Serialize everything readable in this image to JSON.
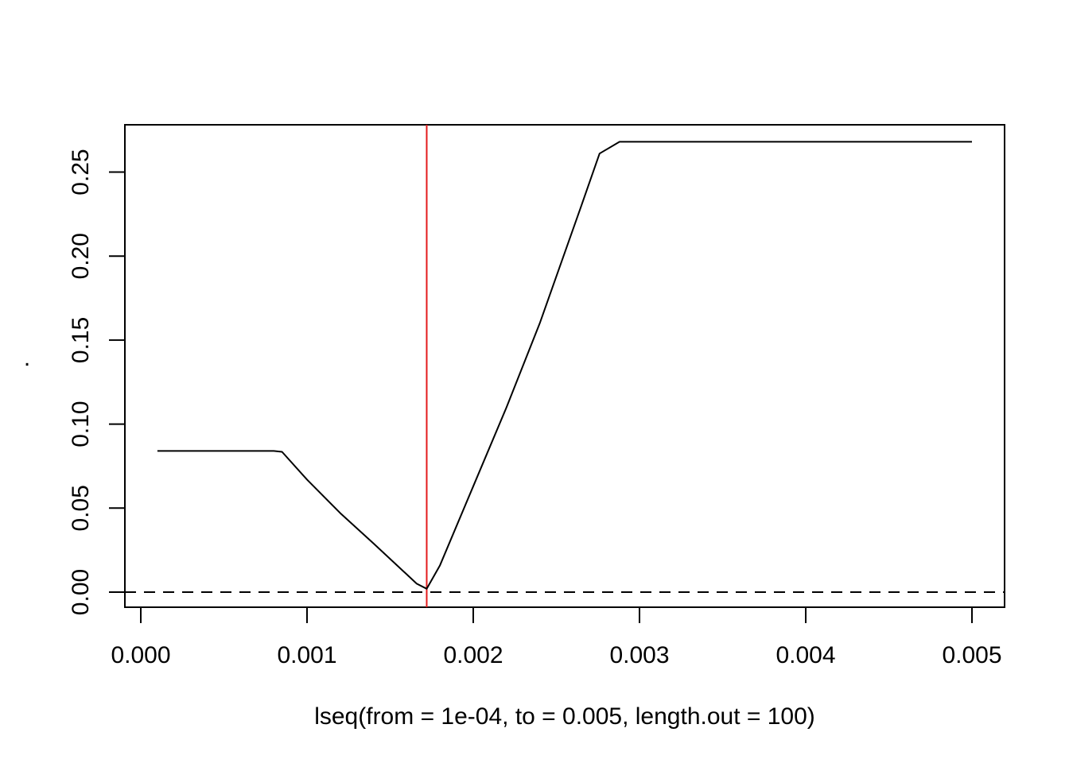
{
  "chart_data": {
    "type": "line",
    "title": "",
    "xlabel": "lseq(from = 1e-04, to = 0.005, length.out = 100)",
    "ylabel": ".",
    "xlim": [
      0.0,
      0.005
    ],
    "ylim": [
      0.0,
      0.27
    ],
    "x_ticks": [
      "0.000",
      "0.001",
      "0.002",
      "0.003",
      "0.004",
      "0.005"
    ],
    "y_ticks": [
      "0.00",
      "0.05",
      "0.10",
      "0.15",
      "0.20",
      "0.25"
    ],
    "grid": false,
    "series": [
      {
        "color": "#000000",
        "x": [
          0.0001,
          0.0008,
          0.00085,
          0.001,
          0.0012,
          0.0014,
          0.00166,
          0.00172,
          0.0018,
          0.002,
          0.0022,
          0.0024,
          0.00265,
          0.00276,
          0.00288,
          0.005
        ],
        "y": [
          0.084,
          0.084,
          0.0835,
          0.067,
          0.047,
          0.029,
          0.005,
          0.002,
          0.016,
          0.063,
          0.11,
          0.16,
          0.23,
          0.261,
          0.268,
          0.268
        ]
      }
    ],
    "reference_lines": [
      {
        "orientation": "horizontal",
        "value": 0.0,
        "style": "dashed",
        "color": "#000000"
      },
      {
        "orientation": "vertical",
        "value": 0.00172,
        "style": "solid",
        "color": "#e31a1c"
      }
    ]
  }
}
